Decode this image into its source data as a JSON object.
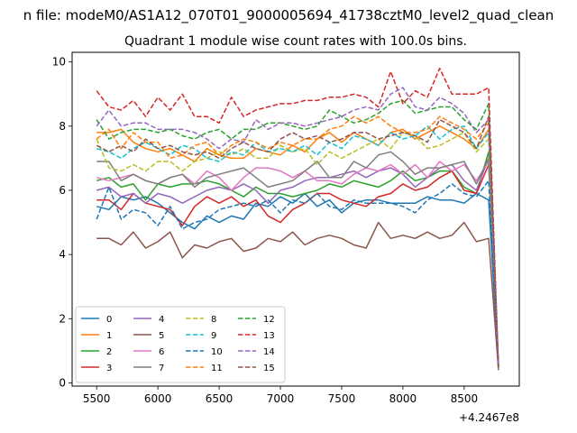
{
  "chart_data": {
    "type": "line",
    "suptitle": "n file: modeM0/AS1A12_070T01_9000005694_41738cztM0_level2_quad_clean",
    "title": "Quadrant 1 module wise count rates with 100.0s bins.",
    "xlabel": "",
    "ylabel": "",
    "x_offset_label": "+4.2467e8",
    "xlim": [
      5300,
      8950
    ],
    "ylim": [
      -0.1,
      10.3
    ],
    "x_ticks": [
      5500,
      6000,
      6500,
      7000,
      7500,
      8000,
      8500
    ],
    "y_ticks": [
      0,
      2,
      4,
      6,
      8,
      10
    ],
    "grid": false,
    "legend_position": "lower-left",
    "x": [
      5500,
      5600,
      5700,
      5800,
      5900,
      6000,
      6100,
      6200,
      6300,
      6400,
      6500,
      6600,
      6700,
      6800,
      6900,
      7000,
      7100,
      7200,
      7300,
      7400,
      7500,
      7600,
      7700,
      7800,
      7900,
      8000,
      8100,
      8200,
      8300,
      8400,
      8500,
      8600,
      8700,
      8780
    ],
    "series": [
      {
        "name": "0",
        "color": "#1f77b4",
        "dash": "solid",
        "values": [
          5.5,
          5.4,
          5.8,
          5.7,
          5.8,
          5.6,
          5.3,
          5.0,
          4.8,
          5.2,
          5.0,
          5.2,
          5.1,
          5.6,
          5.5,
          5.8,
          5.6,
          5.9,
          5.5,
          5.7,
          5.3,
          5.6,
          5.7,
          5.7,
          5.6,
          5.6,
          5.6,
          5.8,
          5.7,
          5.7,
          5.6,
          5.9,
          5.7,
          0.5
        ]
      },
      {
        "name": "1",
        "color": "#ff7f0e",
        "dash": "solid",
        "values": [
          7.8,
          7.8,
          7.9,
          7.5,
          7.3,
          7.2,
          7.3,
          7.1,
          6.9,
          7.3,
          7.1,
          7.0,
          7.0,
          7.3,
          7.2,
          7.1,
          7.4,
          7.2,
          7.6,
          7.8,
          7.5,
          7.8,
          7.6,
          7.4,
          7.8,
          7.9,
          7.6,
          7.8,
          8.0,
          7.8,
          7.6,
          7.3,
          7.9,
          0.5
        ]
      },
      {
        "name": "2",
        "color": "#2ca02c",
        "dash": "solid",
        "values": [
          6.3,
          6.4,
          6.1,
          6.2,
          5.7,
          6.2,
          6.1,
          6.2,
          6.2,
          6.3,
          6.2,
          6.0,
          5.8,
          6.1,
          5.9,
          5.9,
          5.8,
          5.9,
          6.0,
          6.2,
          6.1,
          6.3,
          6.2,
          6.1,
          6.3,
          6.6,
          6.3,
          6.4,
          6.6,
          6.6,
          6.1,
          5.9,
          7.2,
          0.5
        ]
      },
      {
        "name": "3",
        "color": "#d62728",
        "dash": "solid",
        "values": [
          5.7,
          5.7,
          5.4,
          5.9,
          5.6,
          5.5,
          5.4,
          4.9,
          5.5,
          5.8,
          5.6,
          5.8,
          5.5,
          5.7,
          5.2,
          5.0,
          5.4,
          5.6,
          5.9,
          5.9,
          5.7,
          5.6,
          5.5,
          5.8,
          5.9,
          6.2,
          6.0,
          6.1,
          6.4,
          6.6,
          6.0,
          5.9,
          6.8,
          0.5
        ]
      },
      {
        "name": "4",
        "color": "#9467bd",
        "dash": "solid",
        "values": [
          6.0,
          6.1,
          5.8,
          5.9,
          5.6,
          5.9,
          5.8,
          5.6,
          5.8,
          6.0,
          6.1,
          6.0,
          6.2,
          6.0,
          5.6,
          6.0,
          6.1,
          6.3,
          6.4,
          6.4,
          6.5,
          6.6,
          6.4,
          6.6,
          6.7,
          6.5,
          6.1,
          6.4,
          6.7,
          6.8,
          6.3,
          6.0,
          7.0,
          0.5
        ]
      },
      {
        "name": "5",
        "color": "#8c564b",
        "dash": "solid",
        "values": [
          4.5,
          4.5,
          4.3,
          4.7,
          4.2,
          4.4,
          4.7,
          3.9,
          4.3,
          4.2,
          4.4,
          4.5,
          4.1,
          4.2,
          4.5,
          4.4,
          4.7,
          4.3,
          4.5,
          4.6,
          4.5,
          4.3,
          4.2,
          5.0,
          4.5,
          4.6,
          4.5,
          4.7,
          4.5,
          4.6,
          5.0,
          4.4,
          4.5,
          0.4
        ]
      },
      {
        "name": "6",
        "color": "#e377c2",
        "dash": "solid",
        "values": [
          6.4,
          6.3,
          6.4,
          6.5,
          6.3,
          6.2,
          6.4,
          6.5,
          6.2,
          6.6,
          6.4,
          6.0,
          6.4,
          6.7,
          6.7,
          6.6,
          6.4,
          6.6,
          6.3,
          6.3,
          6.2,
          6.5,
          6.7,
          6.6,
          6.8,
          6.5,
          6.8,
          6.4,
          6.9,
          6.6,
          6.8,
          6.3,
          6.9,
          0.5
        ]
      },
      {
        "name": "7",
        "color": "#7f7f7f",
        "dash": "solid",
        "values": [
          6.9,
          6.9,
          6.3,
          6.5,
          6.3,
          6.2,
          6.4,
          6.5,
          6.1,
          6.4,
          6.5,
          6.6,
          6.7,
          6.4,
          6.1,
          6.2,
          6.3,
          6.6,
          6.9,
          6.4,
          6.4,
          6.9,
          6.7,
          7.1,
          7.2,
          6.9,
          6.5,
          6.7,
          6.7,
          6.8,
          6.9,
          6.2,
          7.0,
          0.5
        ]
      },
      {
        "name": "8",
        "color": "#bcbd22",
        "dash": "dashed",
        "values": [
          7.6,
          6.7,
          6.6,
          6.8,
          6.6,
          6.9,
          6.9,
          6.6,
          6.9,
          7.0,
          7.2,
          7.1,
          7.3,
          7.0,
          7.0,
          7.4,
          7.2,
          7.3,
          6.8,
          7.2,
          7.0,
          7.2,
          7.4,
          7.6,
          7.3,
          7.8,
          7.7,
          7.3,
          7.4,
          7.6,
          7.8,
          7.2,
          7.6,
          0.5
        ]
      },
      {
        "name": "9",
        "color": "#17becf",
        "dash": "dashed",
        "values": [
          7.3,
          7.2,
          7.0,
          7.3,
          7.5,
          7.3,
          7.1,
          7.4,
          7.3,
          7.0,
          6.9,
          7.2,
          7.1,
          7.5,
          7.2,
          7.3,
          7.2,
          7.4,
          7.1,
          7.5,
          7.3,
          7.7,
          7.6,
          7.4,
          7.8,
          7.6,
          7.7,
          8.0,
          7.6,
          7.9,
          8.0,
          7.3,
          7.8,
          0.5
        ]
      },
      {
        "name": "10",
        "color": "#1f77b4",
        "dash": "dashed",
        "values": [
          5.1,
          6.1,
          5.1,
          5.4,
          5.3,
          4.9,
          5.5,
          4.8,
          5.0,
          5.1,
          5.4,
          5.5,
          5.6,
          5.5,
          5.7,
          5.3,
          5.7,
          5.6,
          5.9,
          5.5,
          5.4,
          5.7,
          5.6,
          5.6,
          5.6,
          5.5,
          5.3,
          5.7,
          5.9,
          6.2,
          5.9,
          5.8,
          6.3,
          0.5
        ]
      },
      {
        "name": "11",
        "color": "#ff7f0e",
        "dash": "dashed",
        "values": [
          7.6,
          7.9,
          7.3,
          7.8,
          7.5,
          7.5,
          7.0,
          7.1,
          7.4,
          7.5,
          7.1,
          7.4,
          7.6,
          7.5,
          7.3,
          7.5,
          7.4,
          7.6,
          7.6,
          7.9,
          8.0,
          8.3,
          8.1,
          8.3,
          8.0,
          7.8,
          7.8,
          7.9,
          8.3,
          8.1,
          7.9,
          7.6,
          8.1,
          0.5
        ]
      },
      {
        "name": "12",
        "color": "#2ca02c",
        "dash": "dashed",
        "values": [
          8.2,
          7.6,
          7.8,
          7.9,
          7.9,
          7.8,
          7.9,
          7.7,
          7.6,
          7.8,
          7.9,
          7.6,
          7.9,
          7.9,
          8.1,
          8.1,
          8.0,
          7.9,
          8.0,
          8.5,
          8.3,
          8.1,
          8.2,
          8.4,
          8.7,
          8.8,
          8.4,
          8.5,
          8.6,
          8.6,
          8.2,
          7.9,
          8.7,
          0.5
        ]
      },
      {
        "name": "13",
        "color": "#d62728",
        "dash": "dashed",
        "values": [
          9.1,
          8.6,
          8.5,
          8.8,
          8.3,
          8.9,
          8.5,
          9.0,
          8.3,
          8.3,
          8.1,
          8.9,
          8.3,
          8.5,
          8.6,
          8.7,
          8.7,
          8.8,
          8.8,
          8.9,
          8.9,
          9.0,
          8.9,
          8.6,
          9.7,
          8.7,
          9.1,
          8.9,
          9.8,
          9.0,
          9.0,
          9.0,
          9.2,
          0.5
        ]
      },
      {
        "name": "14",
        "color": "#9467bd",
        "dash": "dashed",
        "values": [
          8.0,
          8.5,
          8.0,
          8.1,
          8.1,
          7.9,
          7.9,
          7.9,
          7.8,
          7.6,
          7.3,
          7.6,
          7.5,
          8.2,
          7.9,
          8.1,
          8.1,
          8.0,
          8.1,
          8.2,
          8.3,
          8.5,
          8.6,
          8.5,
          9.0,
          9.2,
          8.6,
          8.5,
          8.9,
          8.7,
          8.4,
          7.8,
          8.2,
          0.4
        ]
      },
      {
        "name": "15",
        "color": "#8c564b",
        "dash": "dashed",
        "values": [
          7.4,
          7.2,
          7.4,
          7.2,
          7.6,
          7.3,
          7.4,
          7.2,
          7.1,
          7.2,
          7.0,
          7.3,
          7.5,
          7.3,
          7.2,
          7.6,
          7.8,
          7.6,
          7.7,
          7.5,
          7.6,
          7.8,
          7.8,
          7.6,
          7.7,
          7.8,
          7.7,
          7.5,
          8.2,
          8.0,
          7.8,
          7.3,
          8.3,
          0.4
        ]
      }
    ]
  }
}
